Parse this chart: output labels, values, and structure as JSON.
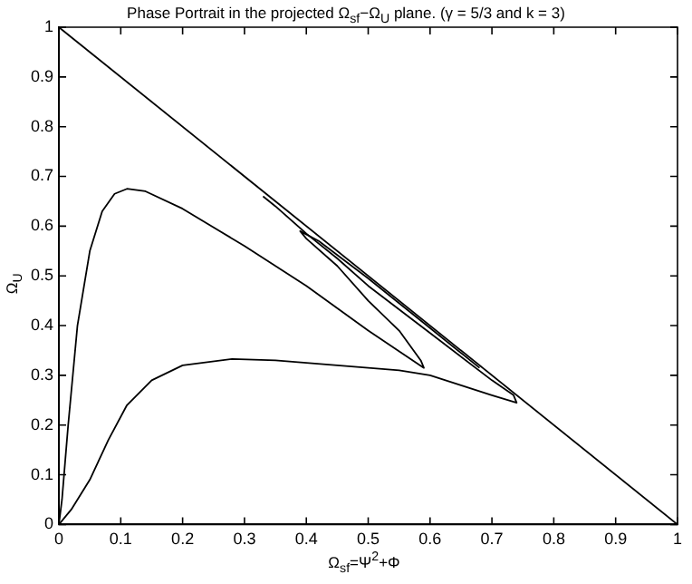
{
  "chart_data": {
    "type": "line",
    "title": "Phase Portrait in the projected Ω$_{sf}$−Ω$_{U}$ plane. (γ = 5/3 and k = 3)",
    "xlabel": "Ω$_{sf}$=Ψ$^{2}$+Φ",
    "ylabel": "Ω$_{U}$",
    "xlim": [
      0,
      1
    ],
    "ylim": [
      0,
      1
    ],
    "xticks": [
      0,
      0.1,
      0.2,
      0.3,
      0.4,
      0.5,
      0.6,
      0.7,
      0.8,
      0.9,
      1
    ],
    "yticks": [
      0,
      0.1,
      0.2,
      0.3,
      0.4,
      0.5,
      0.6,
      0.7,
      0.8,
      0.9,
      1
    ],
    "grid": false,
    "legend": false,
    "marker": "none",
    "line_style": "solid",
    "series": [
      {
        "color": "#000000",
        "x": [
          0,
          1
        ],
        "values": [
          1,
          0
        ]
      },
      {
        "color": "#000000",
        "x": [
          0,
          0.005,
          0.015,
          0.03,
          0.05,
          0.07,
          0.09,
          0.11,
          0.14,
          0.2,
          0.3,
          0.4,
          0.5,
          0.56,
          0.59,
          0.585,
          0.55,
          0.5,
          0.45,
          0.4,
          0.39,
          0.42,
          0.5,
          0.6,
          0.68
        ],
        "values": [
          0,
          0.05,
          0.2,
          0.4,
          0.55,
          0.63,
          0.665,
          0.675,
          0.67,
          0.635,
          0.56,
          0.48,
          0.39,
          0.34,
          0.315,
          0.33,
          0.39,
          0.45,
          0.52,
          0.575,
          0.59,
          0.57,
          0.495,
          0.395,
          0.315
        ]
      },
      {
        "color": "#000000",
        "x": [
          0,
          0.02,
          0.05,
          0.08,
          0.11,
          0.15,
          0.2,
          0.28,
          0.35,
          0.45,
          0.55,
          0.6,
          0.65,
          0.7,
          0.74,
          0.735,
          0.7,
          0.6,
          0.5,
          0.45,
          0.4,
          0.35,
          0.33
        ],
        "values": [
          0,
          0.03,
          0.09,
          0.17,
          0.24,
          0.29,
          0.32,
          0.333,
          0.33,
          0.32,
          0.31,
          0.3,
          0.28,
          0.26,
          0.245,
          0.26,
          0.29,
          0.385,
          0.48,
          0.535,
          0.585,
          0.64,
          0.66
        ]
      }
    ]
  }
}
